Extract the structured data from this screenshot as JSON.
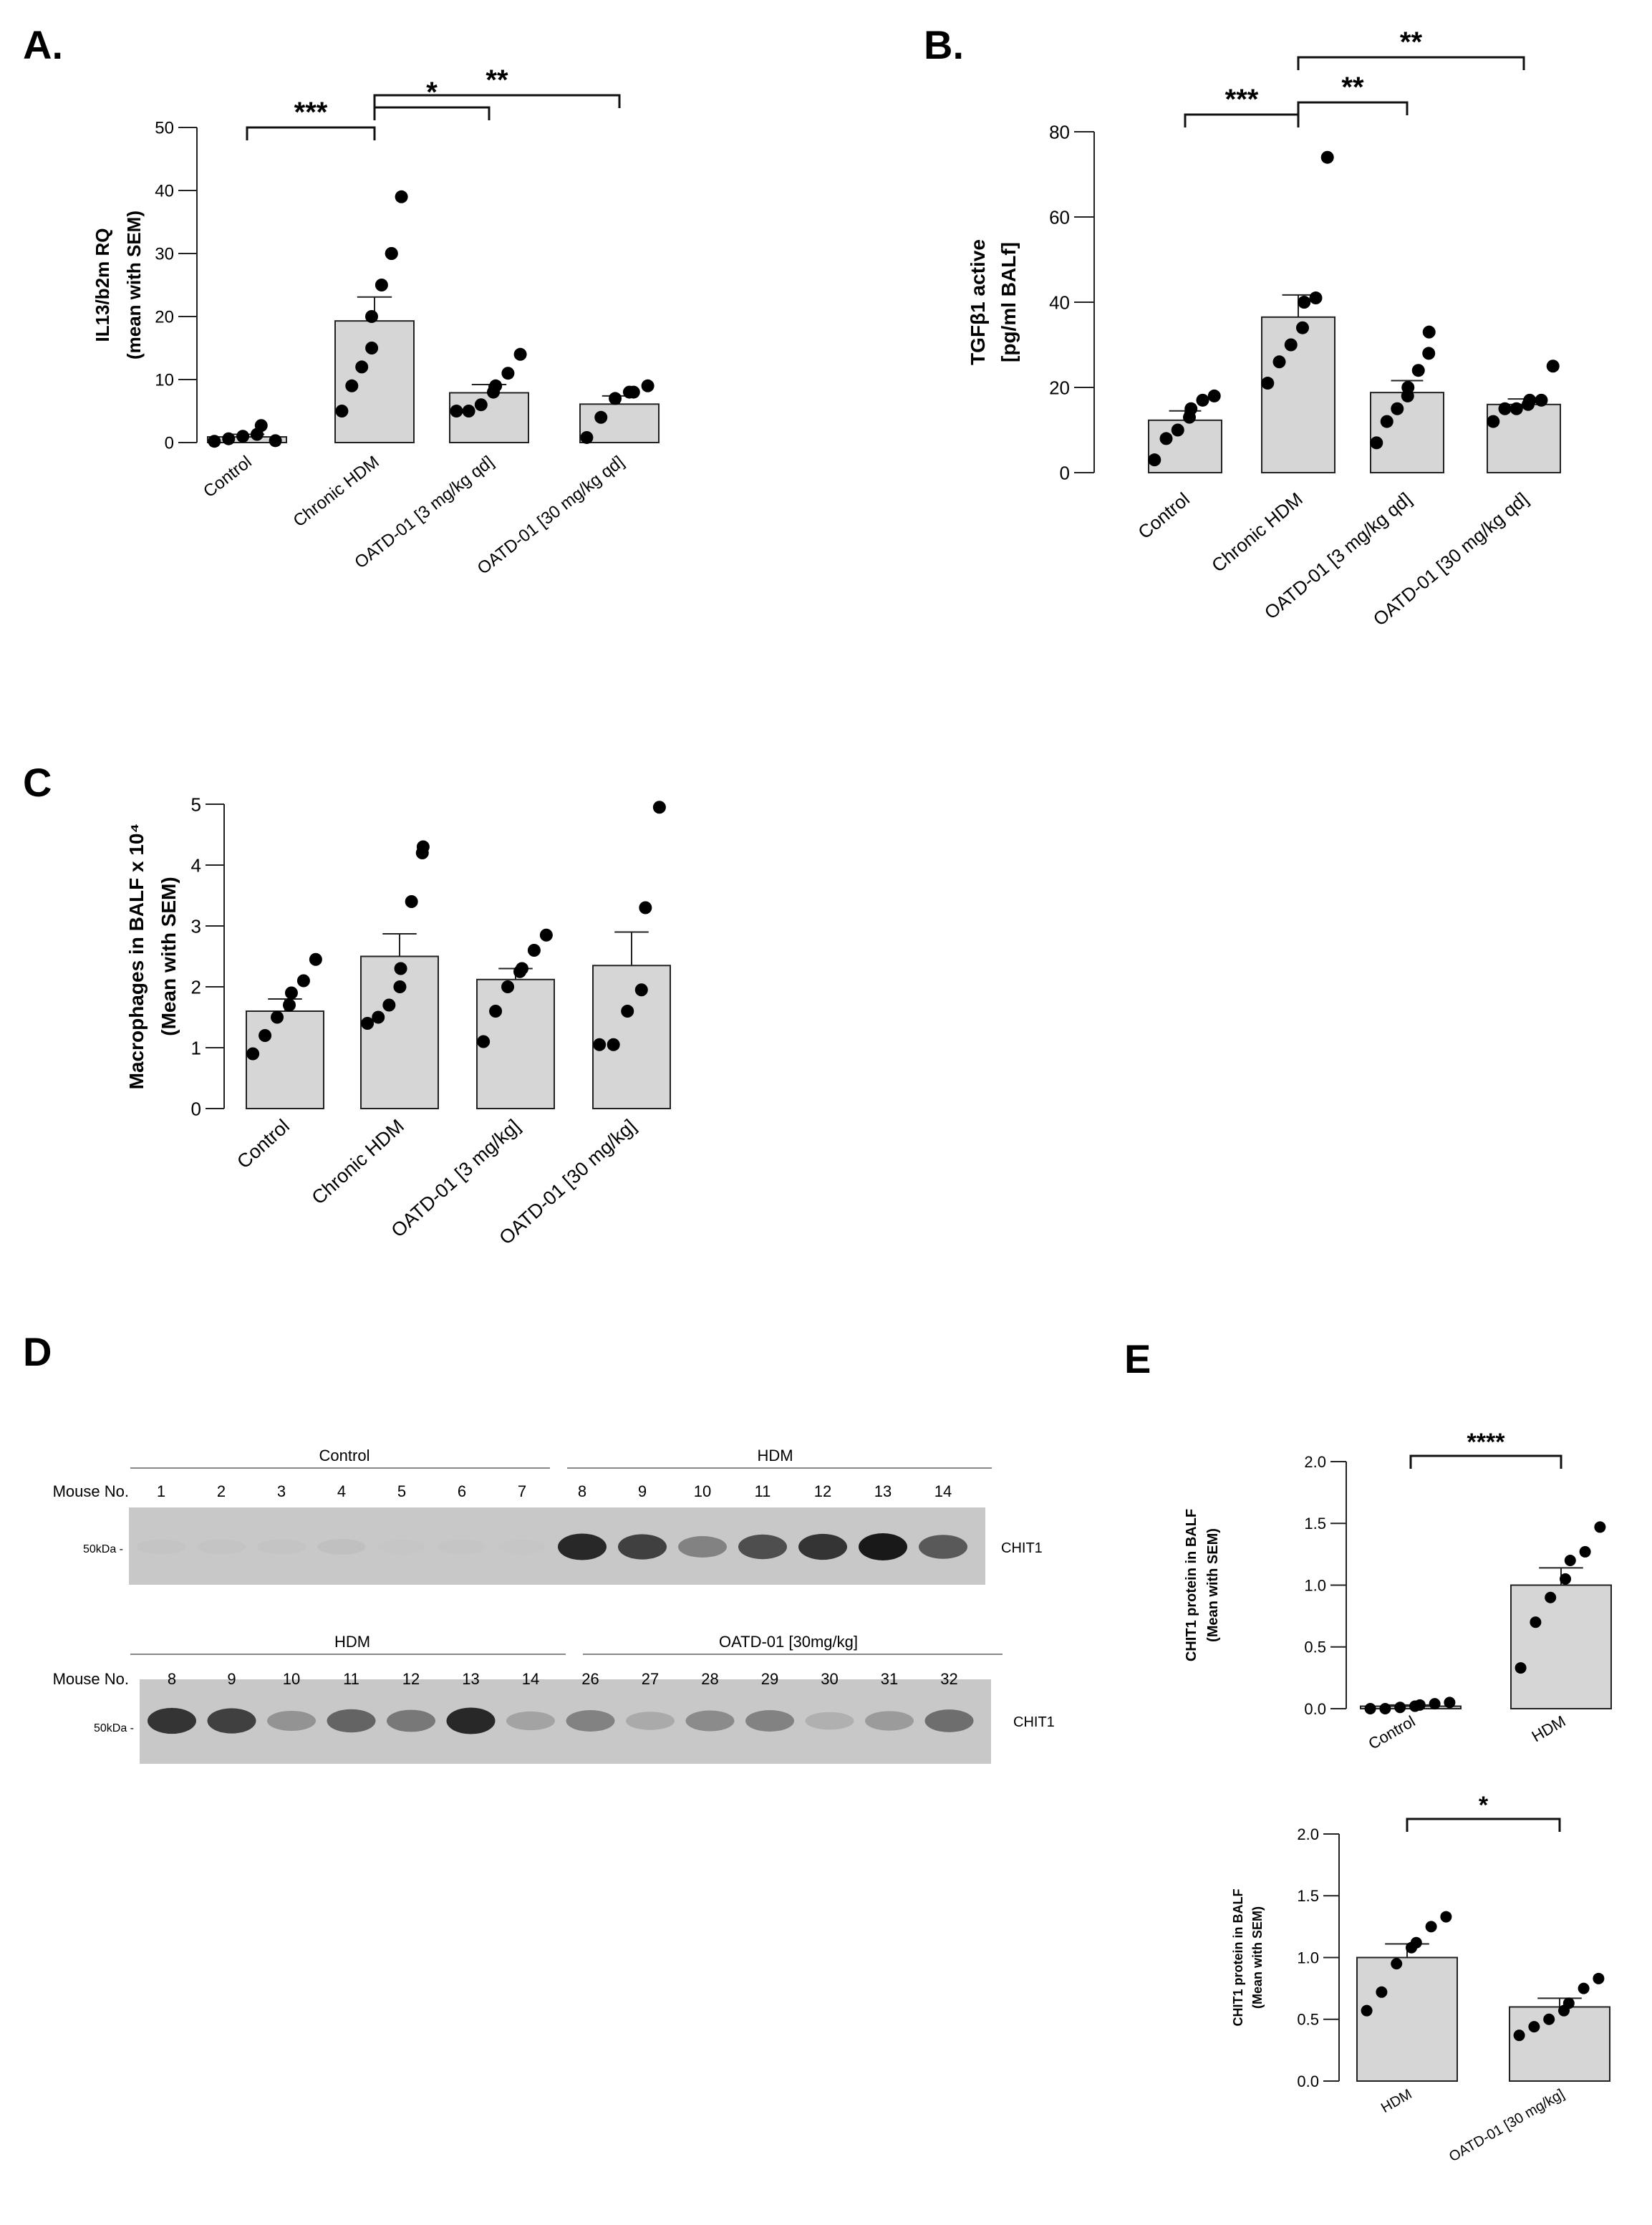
{
  "panels": {
    "A": "A.",
    "B": "B.",
    "C": "C",
    "D": "D",
    "E": "E"
  },
  "chart_data": [
    {
      "id": "A",
      "type": "bar",
      "categories": [
        "Control",
        "Chronic HDM",
        "OATD-01 [3 mg/kg qd]",
        "OATD-01 [30 mg/kg qd]"
      ],
      "ylabel": [
        "IL13/b2m RQ",
        "(mean with SEM)"
      ],
      "ylim": [
        0,
        50
      ],
      "yticks": [
        0,
        10,
        20,
        30,
        40,
        50
      ],
      "means": [
        0.9,
        19.3,
        7.9,
        6.1
      ],
      "sem": [
        0.4,
        3.8,
        1.3,
        1.3
      ],
      "points": [
        [
          0.2,
          0.6,
          1.0,
          1.3,
          2.7,
          0.3
        ],
        [
          5,
          9,
          12,
          15,
          20,
          25,
          30,
          30,
          39
        ],
        [
          5,
          5,
          6,
          8,
          9,
          11,
          14
        ],
        [
          0.8,
          4,
          7,
          8,
          8,
          9
        ]
      ],
      "significance": [
        {
          "from": 0,
          "to": 1,
          "label": "***"
        },
        {
          "from": 1,
          "to": 2,
          "label": "*"
        },
        {
          "from": 1,
          "to": 3,
          "label": "**"
        }
      ]
    },
    {
      "id": "B",
      "type": "bar",
      "categories": [
        "Control",
        "Chronic HDM",
        "OATD-01 [3 mg/kg qd]",
        "OATD-01 [30 mg/kg qd]"
      ],
      "ylabel": [
        "TGFβ1 active",
        "[pg/ml BALf]"
      ],
      "ylim": [
        0,
        80
      ],
      "yticks": [
        0,
        20,
        40,
        60,
        80
      ],
      "means": [
        12.3,
        36.5,
        18.8,
        16.0
      ],
      "sem": [
        2.2,
        5.2,
        2.8,
        1.3
      ],
      "points": [
        [
          3,
          8,
          10,
          13,
          15,
          17,
          18
        ],
        [
          21,
          26,
          30,
          34,
          40,
          41,
          74
        ],
        [
          7,
          12,
          15,
          18,
          20,
          24,
          28,
          33
        ],
        [
          12,
          15,
          15,
          16,
          17,
          17,
          25
        ]
      ],
      "significance": [
        {
          "from": 0,
          "to": 1,
          "label": "***"
        },
        {
          "from": 1,
          "to": 2,
          "label": "**"
        },
        {
          "from": 1,
          "to": 3,
          "label": "**"
        }
      ]
    },
    {
      "id": "C",
      "type": "bar",
      "categories": [
        "Control",
        "Chronic HDM",
        "OATD-01 [3 mg/kg]",
        "OATD-01 [30 mg/kg]"
      ],
      "ylabel": [
        "Macrophages in BALF x 10⁴",
        "(Mean with  SEM)"
      ],
      "ylim": [
        0,
        5
      ],
      "yticks": [
        0,
        1,
        2,
        3,
        4,
        5
      ],
      "means": [
        1.6,
        2.5,
        2.12,
        2.35
      ],
      "sem": [
        0.2,
        0.37,
        0.18,
        0.55
      ],
      "points": [
        [
          0.9,
          1.2,
          1.5,
          1.7,
          1.9,
          2.1,
          2.45
        ],
        [
          1.4,
          1.5,
          1.7,
          2.0,
          2.3,
          3.4,
          4.2,
          4.3
        ],
        [
          1.1,
          1.6,
          2.0,
          2.25,
          2.3,
          2.6,
          2.85
        ],
        [
          1.05,
          1.05,
          1.6,
          1.95,
          3.3,
          4.95
        ]
      ],
      "significance": []
    },
    {
      "id": "E1",
      "type": "bar",
      "categories": [
        "Control",
        "HDM"
      ],
      "ylabel": [
        "CHIT1 protein in BALF",
        "(Mean with SEM)"
      ],
      "ylim": [
        0,
        2.0
      ],
      "yticks": [
        "0.0",
        "0.5",
        "1.0",
        "1.5",
        "2.0"
      ],
      "means": [
        0.02,
        1.0
      ],
      "sem": [
        0.01,
        0.14
      ],
      "points": [
        [
          0.0,
          0.0,
          0.01,
          0.02,
          0.03,
          0.04,
          0.05
        ],
        [
          0.33,
          0.7,
          0.9,
          1.05,
          1.2,
          1.27,
          1.47
        ]
      ],
      "significance": [
        {
          "from": 0,
          "to": 1,
          "label": "****"
        }
      ]
    },
    {
      "id": "E2",
      "type": "bar",
      "categories": [
        "HDM",
        "OATD-01 [30 mg/kg]"
      ],
      "ylabel": [
        "CHIT1 protein in BALF",
        "(Mean with SEM)"
      ],
      "ylim": [
        0,
        2.0
      ],
      "yticks": [
        "0.0",
        "0.5",
        "1.0",
        "1.5",
        "2.0"
      ],
      "means": [
        1.0,
        0.6
      ],
      "sem": [
        0.11,
        0.07
      ],
      "points": [
        [
          0.57,
          0.72,
          0.95,
          1.08,
          1.12,
          1.25,
          1.33
        ],
        [
          0.37,
          0.44,
          0.5,
          0.57,
          0.63,
          0.75,
          0.83
        ]
      ],
      "significance": [
        {
          "from": 0,
          "to": 1,
          "label": "*"
        }
      ]
    }
  ],
  "blots": [
    {
      "groups": [
        "Control",
        "HDM"
      ],
      "row_label": "Mouse No.",
      "lanes": [
        "1",
        "2",
        "3",
        "4",
        "5",
        "6",
        "7",
        "8",
        "9",
        "10",
        "11",
        "12",
        "13",
        "14"
      ],
      "intensity": [
        0.05,
        0.06,
        0.06,
        0.1,
        0.03,
        0.04,
        0.03,
        0.95,
        0.85,
        0.55,
        0.8,
        0.9,
        1.0,
        0.75
      ],
      "marker": "50kDa -",
      "band_label": "CHIT1"
    },
    {
      "groups": [
        "HDM",
        "OATD-01 [30mg/kg]"
      ],
      "row_label": "Mouse No.",
      "lanes": [
        "8",
        "9",
        "10",
        "11",
        "12",
        "13",
        "14",
        "26",
        "27",
        "28",
        "29",
        "30",
        "31",
        "32"
      ],
      "intensity": [
        0.9,
        0.85,
        0.45,
        0.7,
        0.6,
        0.95,
        0.35,
        0.55,
        0.3,
        0.5,
        0.55,
        0.25,
        0.4,
        0.65
      ],
      "marker": "50kDa -",
      "band_label": "CHIT1"
    }
  ]
}
